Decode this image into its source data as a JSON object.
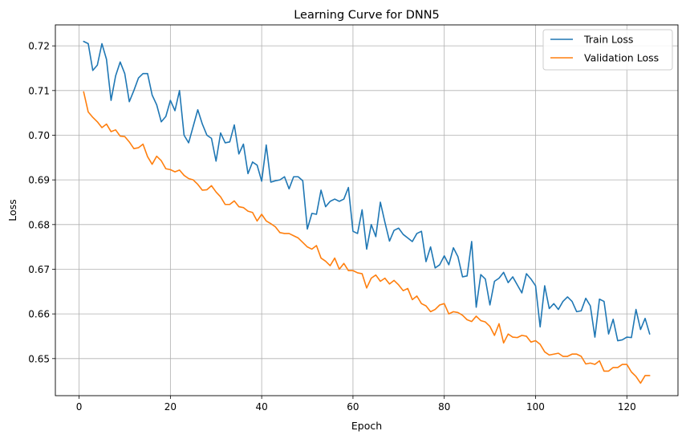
{
  "chart_data": {
    "type": "line",
    "title": "Learning Curve for DNN5",
    "xlabel": "Epoch",
    "ylabel": "Loss",
    "xlim": [
      -5.2,
      131.2
    ],
    "ylim": [
      0.6417,
      0.7247
    ],
    "xticks": [
      0,
      20,
      40,
      60,
      80,
      100,
      120
    ],
    "yticks": [
      0.65,
      0.66,
      0.67,
      0.68,
      0.69,
      0.7,
      0.71,
      0.72
    ],
    "ytick_labels": [
      "0.65",
      "0.66",
      "0.67",
      "0.68",
      "0.69",
      "0.70",
      "0.71",
      "0.72"
    ],
    "grid": true,
    "legend_position": "top-right",
    "x": [
      1,
      2,
      3,
      4,
      5,
      6,
      7,
      8,
      9,
      10,
      11,
      12,
      13,
      14,
      15,
      16,
      17,
      18,
      19,
      20,
      21,
      22,
      23,
      24,
      25,
      26,
      27,
      28,
      29,
      30,
      31,
      32,
      33,
      34,
      35,
      36,
      37,
      38,
      39,
      40,
      41,
      42,
      43,
      44,
      45,
      46,
      47,
      48,
      49,
      50,
      51,
      52,
      53,
      54,
      55,
      56,
      57,
      58,
      59,
      60,
      61,
      62,
      63,
      64,
      65,
      66,
      67,
      68,
      69,
      70,
      71,
      72,
      73,
      74,
      75,
      76,
      77,
      78,
      79,
      80,
      81,
      82,
      83,
      84,
      85,
      86,
      87,
      88,
      89,
      90,
      91,
      92,
      93,
      94,
      95,
      96,
      97,
      98,
      99,
      100,
      101,
      102,
      103,
      104,
      105,
      106,
      107,
      108,
      109,
      110,
      111,
      112,
      113,
      114,
      115,
      116,
      117,
      118,
      119,
      120,
      121,
      122,
      123,
      124,
      125
    ],
    "series": [
      {
        "name": "Train Loss",
        "color": "#1f77b4",
        "values": [
          0.721,
          0.7205,
          0.7145,
          0.7157,
          0.7205,
          0.717,
          0.7078,
          0.7133,
          0.7164,
          0.7138,
          0.7075,
          0.71,
          0.7128,
          0.7138,
          0.7138,
          0.709,
          0.7068,
          0.703,
          0.7042,
          0.7078,
          0.7055,
          0.71,
          0.7,
          0.6983,
          0.702,
          0.7057,
          0.7025,
          0.7,
          0.6993,
          0.6942,
          0.7005,
          0.6983,
          0.6985,
          0.7023,
          0.6958,
          0.698,
          0.6914,
          0.694,
          0.6933,
          0.6897,
          0.6978,
          0.6895,
          0.6898,
          0.69,
          0.6907,
          0.688,
          0.6907,
          0.6907,
          0.6898,
          0.679,
          0.6825,
          0.6823,
          0.6877,
          0.684,
          0.6852,
          0.6857,
          0.6852,
          0.6857,
          0.6883,
          0.6785,
          0.678,
          0.6833,
          0.6745,
          0.68,
          0.6773,
          0.685,
          0.6805,
          0.6763,
          0.6787,
          0.6792,
          0.6778,
          0.677,
          0.6762,
          0.678,
          0.6785,
          0.6717,
          0.675,
          0.6703,
          0.671,
          0.673,
          0.671,
          0.6748,
          0.6728,
          0.6683,
          0.6685,
          0.6762,
          0.6615,
          0.6688,
          0.6678,
          0.662,
          0.6673,
          0.668,
          0.6693,
          0.667,
          0.6683,
          0.6665,
          0.6647,
          0.669,
          0.6678,
          0.6663,
          0.6571,
          0.6663,
          0.6612,
          0.6623,
          0.661,
          0.6628,
          0.6638,
          0.6628,
          0.6605,
          0.6607,
          0.6635,
          0.6618,
          0.6548,
          0.6633,
          0.6628,
          0.6555,
          0.6588,
          0.654,
          0.6542,
          0.6548,
          0.6547,
          0.661,
          0.6565,
          0.659,
          0.6555
        ]
      },
      {
        "name": "Validation Loss",
        "color": "#ff7f0e",
        "values": [
          0.7097,
          0.7052,
          0.704,
          0.703,
          0.7017,
          0.7025,
          0.7008,
          0.7012,
          0.6998,
          0.6997,
          0.6985,
          0.697,
          0.6972,
          0.698,
          0.6952,
          0.6935,
          0.6953,
          0.6943,
          0.6925,
          0.6923,
          0.6918,
          0.6922,
          0.691,
          0.6903,
          0.69,
          0.689,
          0.6877,
          0.6878,
          0.6887,
          0.6873,
          0.6862,
          0.6845,
          0.6845,
          0.6853,
          0.684,
          0.6838,
          0.683,
          0.6827,
          0.6808,
          0.6823,
          0.6808,
          0.6802,
          0.6795,
          0.6782,
          0.678,
          0.678,
          0.6775,
          0.677,
          0.676,
          0.675,
          0.6745,
          0.6753,
          0.6725,
          0.6718,
          0.6708,
          0.6725,
          0.67,
          0.6713,
          0.6697,
          0.6697,
          0.6692,
          0.669,
          0.6658,
          0.668,
          0.6687,
          0.6673,
          0.668,
          0.6667,
          0.6675,
          0.6665,
          0.6652,
          0.6657,
          0.6632,
          0.664,
          0.6623,
          0.6618,
          0.6605,
          0.661,
          0.662,
          0.6623,
          0.66,
          0.6605,
          0.6603,
          0.6597,
          0.6587,
          0.6583,
          0.6595,
          0.6585,
          0.6582,
          0.6572,
          0.6552,
          0.6578,
          0.6535,
          0.6555,
          0.6548,
          0.6547,
          0.6552,
          0.655,
          0.6537,
          0.654,
          0.6532,
          0.6515,
          0.6508,
          0.651,
          0.6512,
          0.6505,
          0.6505,
          0.651,
          0.651,
          0.6505,
          0.6488,
          0.649,
          0.6487,
          0.6495,
          0.6472,
          0.6472,
          0.648,
          0.648,
          0.6487,
          0.6487,
          0.647,
          0.646,
          0.6445,
          0.6462,
          0.6462
        ]
      }
    ]
  }
}
